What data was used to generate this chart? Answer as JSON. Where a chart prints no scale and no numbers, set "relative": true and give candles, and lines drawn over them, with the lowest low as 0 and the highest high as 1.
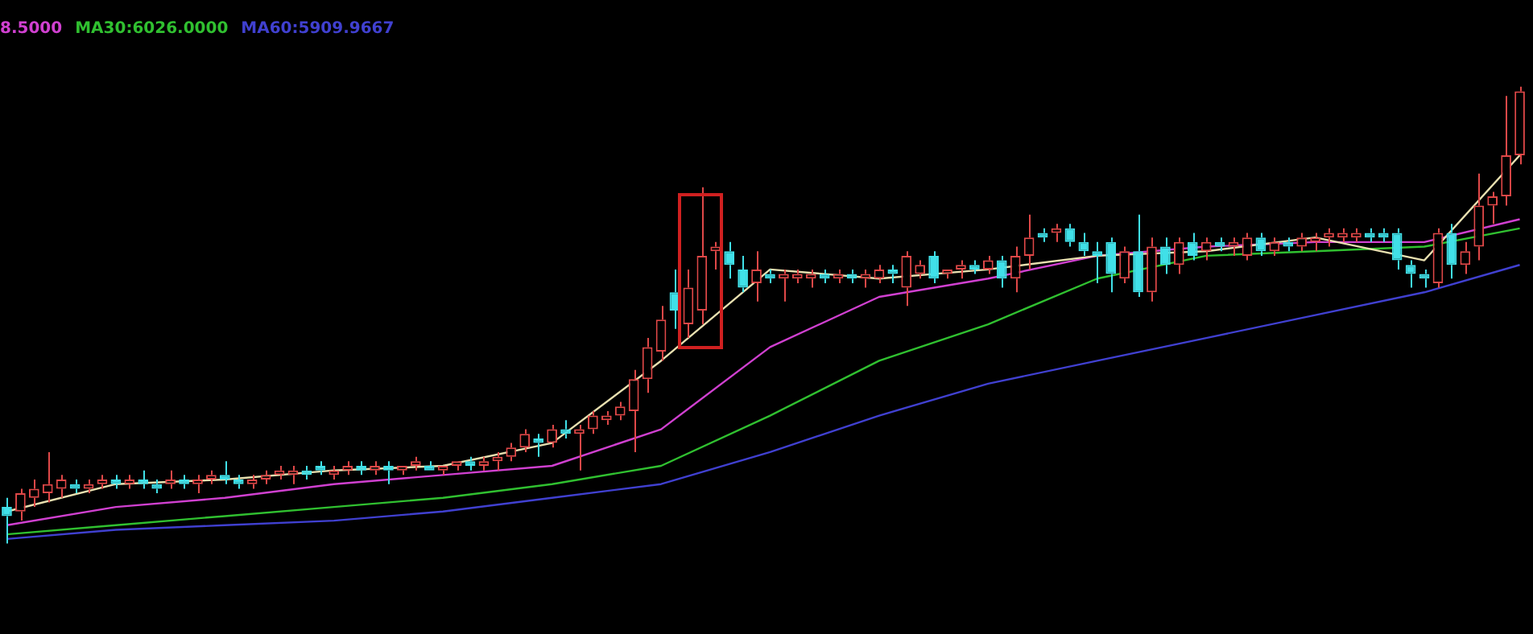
{
  "chart_data": {
    "type": "candlestick",
    "relative": true,
    "legend": "top left",
    "categories": [
      null,
      null,
      null,
      null,
      null,
      null,
      null,
      null,
      null,
      null,
      null,
      null,
      null,
      null,
      null,
      null,
      null,
      null,
      null,
      null,
      null,
      null,
      null,
      null,
      null,
      null,
      null,
      null,
      null,
      null,
      null,
      null,
      null,
      null,
      null,
      null,
      null,
      null,
      null,
      null,
      null,
      null,
      null,
      null,
      null,
      null,
      null,
      null,
      null,
      null,
      null,
      null,
      null,
      null,
      null,
      null,
      null,
      null,
      null,
      null,
      null,
      null,
      null,
      null,
      null,
      null,
      null,
      null,
      null,
      null,
      null,
      null,
      null,
      null,
      null,
      null,
      null,
      null,
      null,
      null,
      null,
      null,
      null,
      null,
      null,
      null,
      null,
      null,
      null,
      null,
      null,
      null,
      null,
      null,
      null,
      null,
      null,
      null,
      null,
      null,
      null,
      null,
      null,
      null,
      null,
      null,
      null,
      null,
      null,
      null,
      null,
      null
    ],
    "ohlc": [
      [
        0.08,
        0.1,
        0,
        0.06
      ],
      [
        0.07,
        0.12,
        0.05,
        0.11
      ],
      [
        0.1,
        0.14,
        0.08,
        0.12
      ],
      [
        0.11,
        0.2,
        0.09,
        0.13
      ],
      [
        0.12,
        0.15,
        0.1,
        0.14
      ],
      [
        0.13,
        0.14,
        0.11,
        0.12
      ],
      [
        0.12,
        0.14,
        0.11,
        0.13
      ],
      [
        0.13,
        0.15,
        0.12,
        0.14
      ],
      [
        0.14,
        0.15,
        0.12,
        0.13
      ],
      [
        0.13,
        0.15,
        0.12,
        0.14
      ],
      [
        0.14,
        0.16,
        0.12,
        0.13
      ],
      [
        0.13,
        0.14,
        0.11,
        0.12
      ],
      [
        0.13,
        0.16,
        0.12,
        0.14
      ],
      [
        0.14,
        0.15,
        0.12,
        0.13
      ],
      [
        0.13,
        0.15,
        0.11,
        0.14
      ],
      [
        0.14,
        0.16,
        0.13,
        0.15
      ],
      [
        0.15,
        0.18,
        0.13,
        0.14
      ],
      [
        0.14,
        0.15,
        0.12,
        0.13
      ],
      [
        0.13,
        0.15,
        0.12,
        0.14
      ],
      [
        0.14,
        0.16,
        0.13,
        0.15
      ],
      [
        0.15,
        0.17,
        0.14,
        0.16
      ],
      [
        0.15,
        0.17,
        0.13,
        0.16
      ],
      [
        0.16,
        0.17,
        0.14,
        0.15
      ],
      [
        0.17,
        0.18,
        0.15,
        0.16
      ],
      [
        0.15,
        0.17,
        0.14,
        0.16
      ],
      [
        0.16,
        0.18,
        0.15,
        0.17
      ],
      [
        0.17,
        0.18,
        0.15,
        0.16
      ],
      [
        0.16,
        0.18,
        0.15,
        0.17
      ],
      [
        0.17,
        0.18,
        0.13,
        0.16
      ],
      [
        0.16,
        0.17,
        0.15,
        0.17
      ],
      [
        0.17,
        0.19,
        0.16,
        0.18
      ],
      [
        0.17,
        0.18,
        0.16,
        0.16
      ],
      [
        0.16,
        0.17,
        0.15,
        0.17
      ],
      [
        0.17,
        0.18,
        0.16,
        0.18
      ],
      [
        0.18,
        0.19,
        0.16,
        0.17
      ],
      [
        0.17,
        0.19,
        0.16,
        0.18
      ],
      [
        0.18,
        0.2,
        0.16,
        0.19
      ],
      [
        0.19,
        0.22,
        0.18,
        0.21
      ],
      [
        0.21,
        0.25,
        0.2,
        0.24
      ],
      [
        0.23,
        0.24,
        0.19,
        0.22
      ],
      [
        0.22,
        0.26,
        0.21,
        0.25
      ],
      [
        0.25,
        0.27,
        0.23,
        0.24
      ],
      [
        0.24,
        0.26,
        0.16,
        0.25
      ],
      [
        0.25,
        0.29,
        0.24,
        0.28
      ],
      [
        0.27,
        0.29,
        0.26,
        0.28
      ],
      [
        0.28,
        0.31,
        0.27,
        0.3
      ],
      [
        0.29,
        0.38,
        0.2,
        0.36
      ],
      [
        0.36,
        0.45,
        0.33,
        0.43
      ],
      [
        0.42,
        0.52,
        0.4,
        0.49
      ],
      [
        0.55,
        0.6,
        0.47,
        0.51
      ],
      [
        0.48,
        0.6,
        0.45,
        0.56
      ],
      [
        0.51,
        0.78,
        0.48,
        0.63
      ],
      [
        0.64,
        0.66,
        0.6,
        0.65
      ],
      [
        0.64,
        0.66,
        0.58,
        0.61
      ],
      [
        0.6,
        0.63,
        0.55,
        0.56
      ],
      [
        0.57,
        0.64,
        0.53,
        0.6
      ],
      [
        0.59,
        0.6,
        0.57,
        0.58
      ],
      [
        0.58,
        0.6,
        0.53,
        0.59
      ],
      [
        0.58,
        0.6,
        0.57,
        0.59
      ],
      [
        0.58,
        0.6,
        0.56,
        0.59
      ],
      [
        0.59,
        0.6,
        0.57,
        0.58
      ],
      [
        0.58,
        0.6,
        0.57,
        0.59
      ],
      [
        0.59,
        0.6,
        0.57,
        0.58
      ],
      [
        0.58,
        0.6,
        0.56,
        0.59
      ],
      [
        0.58,
        0.61,
        0.57,
        0.6
      ],
      [
        0.6,
        0.61,
        0.57,
        0.59
      ],
      [
        0.56,
        0.64,
        0.52,
        0.63
      ],
      [
        0.59,
        0.62,
        0.58,
        0.61
      ],
      [
        0.63,
        0.64,
        0.57,
        0.58
      ],
      [
        0.59,
        0.6,
        0.58,
        0.6
      ],
      [
        0.6,
        0.62,
        0.58,
        0.61
      ],
      [
        0.61,
        0.62,
        0.59,
        0.6
      ],
      [
        0.6,
        0.63,
        0.59,
        0.62
      ],
      [
        0.62,
        0.63,
        0.56,
        0.58
      ],
      [
        0.58,
        0.65,
        0.55,
        0.63
      ],
      [
        0.63,
        0.72,
        0.6,
        0.67
      ],
      [
        0.68,
        0.69,
        0.66,
        0.67
      ],
      [
        0.68,
        0.7,
        0.66,
        0.69
      ],
      [
        0.69,
        0.7,
        0.65,
        0.66
      ],
      [
        0.66,
        0.68,
        0.63,
        0.64
      ],
      [
        0.64,
        0.66,
        0.57,
        0.63
      ],
      [
        0.66,
        0.67,
        0.55,
        0.59
      ],
      [
        0.58,
        0.65,
        0.57,
        0.64
      ],
      [
        0.64,
        0.72,
        0.54,
        0.55
      ],
      [
        0.55,
        0.67,
        0.53,
        0.65
      ],
      [
        0.65,
        0.67,
        0.59,
        0.61
      ],
      [
        0.61,
        0.67,
        0.59,
        0.66
      ],
      [
        0.66,
        0.68,
        0.62,
        0.63
      ],
      [
        0.64,
        0.67,
        0.62,
        0.66
      ],
      [
        0.66,
        0.67,
        0.64,
        0.65
      ],
      [
        0.65,
        0.67,
        0.63,
        0.66
      ],
      [
        0.63,
        0.68,
        0.62,
        0.67
      ],
      [
        0.67,
        0.68,
        0.63,
        0.64
      ],
      [
        0.64,
        0.67,
        0.63,
        0.66
      ],
      [
        0.66,
        0.67,
        0.64,
        0.65
      ],
      [
        0.65,
        0.68,
        0.64,
        0.67
      ],
      [
        0.66,
        0.68,
        0.64,
        0.67
      ],
      [
        0.67,
        0.69,
        0.65,
        0.68
      ],
      [
        0.67,
        0.69,
        0.66,
        0.68
      ],
      [
        0.67,
        0.69,
        0.66,
        0.68
      ],
      [
        0.68,
        0.69,
        0.66,
        0.67
      ],
      [
        0.68,
        0.69,
        0.66,
        0.67
      ],
      [
        0.68,
        0.69,
        0.6,
        0.62
      ],
      [
        0.61,
        0.62,
        0.56,
        0.59
      ],
      [
        0.59,
        0.6,
        0.56,
        0.58
      ],
      [
        0.57,
        0.69,
        0.56,
        0.68
      ],
      [
        0.68,
        0.7,
        0.58,
        0.61
      ],
      [
        0.61,
        0.66,
        0.59,
        0.64
      ],
      [
        0.65,
        0.81,
        0.62,
        0.74
      ],
      [
        0.74,
        0.77,
        0.7,
        0.76
      ],
      [
        0.76,
        0.98,
        0.74,
        0.85
      ],
      [
        0.85,
        1.0,
        0.83,
        0.99
      ]
    ],
    "colors": [
      "#40e0e8",
      "#e04848",
      "#e04848",
      "#e04848",
      "#e04848",
      "#40e0e8",
      "#e04848",
      "#e04848",
      "#40e0e8",
      "#e04848",
      "#40e0e8",
      "#40e0e8",
      "#e04848",
      "#40e0e8",
      "#e04848",
      "#e04848",
      "#40e0e8",
      "#40e0e8",
      "#e04848",
      "#e04848",
      "#e04848",
      "#e04848",
      "#40e0e8",
      "#40e0e8",
      "#e04848",
      "#e04848",
      "#40e0e8",
      "#e04848",
      "#40e0e8",
      "#e04848",
      "#e04848",
      "#40e0e8",
      "#e04848",
      "#e04848",
      "#40e0e8",
      "#e04848",
      "#e04848",
      "#e04848",
      "#e04848",
      "#40e0e8",
      "#e04848",
      "#40e0e8",
      "#e04848",
      "#e04848",
      "#e04848",
      "#e04848",
      "#e04848",
      "#e04848",
      "#e04848",
      "#40e0e8",
      "#e04848",
      "#e04848",
      "#e04848",
      "#40e0e8",
      "#40e0e8",
      "#e04848",
      "#40e0e8",
      "#e04848",
      "#e04848",
      "#e04848",
      "#40e0e8",
      "#e04848",
      "#40e0e8",
      "#e04848",
      "#e04848",
      "#40e0e8",
      "#e04848",
      "#e04848",
      "#40e0e8",
      "#e04848",
      "#e04848",
      "#40e0e8",
      "#e04848",
      "#40e0e8",
      "#e04848",
      "#e04848",
      "#40e0e8",
      "#e04848",
      "#40e0e8",
      "#40e0e8",
      "#40e0e8",
      "#40e0e8",
      "#e04848",
      "#40e0e8",
      "#e04848",
      "#40e0e8",
      "#e04848",
      "#40e0e8",
      "#e04848",
      "#40e0e8",
      "#e04848",
      "#e04848",
      "#40e0e8",
      "#e04848",
      "#40e0e8",
      "#e04848",
      "#e04848",
      "#e04848",
      "#e04848",
      "#e04848",
      "#40e0e8",
      "#40e0e8",
      "#40e0e8",
      "#40e0e8",
      "#40e0e8",
      "#e04848",
      "#40e0e8",
      "#e04848",
      "#e04848",
      "#e04848",
      "#e04848",
      "#e04848"
    ],
    "series": [
      {
        "type": "line",
        "color": "#e8e0b0",
        "values": [
          0.07,
          null,
          null,
          null,
          null,
          null,
          null,
          null,
          0.13,
          null,
          null,
          null,
          null,
          null,
          null,
          null,
          0.14,
          null,
          null,
          null,
          null,
          null,
          null,
          null,
          0.16,
          null,
          null,
          null,
          null,
          null,
          null,
          null,
          0.17,
          null,
          null,
          null,
          null,
          null,
          null,
          null,
          0.22,
          null,
          null,
          null,
          null,
          null,
          null,
          null,
          0.4,
          null,
          null,
          null,
          null,
          null,
          null,
          null,
          0.6,
          null,
          null,
          null,
          null,
          null,
          null,
          null,
          0.58,
          null,
          null,
          null,
          null,
          null,
          null,
          null,
          0.6,
          null,
          null,
          null,
          null,
          null,
          null,
          null,
          0.63,
          null,
          null,
          null,
          null,
          null,
          null,
          null,
          0.64,
          null,
          null,
          null,
          null,
          null,
          null,
          null,
          0.67,
          null,
          null,
          null,
          null,
          null,
          null,
          null,
          0.62,
          null,
          null,
          null,
          null,
          null,
          null,
          0.85
        ]
      },
      {
        "type": "line",
        "name": "8.5000",
        "color": "#d040d0",
        "values": [
          0.04,
          null,
          null,
          null,
          null,
          null,
          null,
          null,
          0.08,
          null,
          null,
          null,
          null,
          null,
          null,
          null,
          0.1,
          null,
          null,
          null,
          null,
          null,
          null,
          null,
          0.13,
          null,
          null,
          null,
          null,
          null,
          null,
          null,
          0.15,
          null,
          null,
          null,
          null,
          null,
          null,
          null,
          0.17,
          null,
          null,
          null,
          null,
          null,
          null,
          null,
          0.25,
          null,
          null,
          null,
          null,
          null,
          null,
          null,
          0.43,
          null,
          null,
          null,
          null,
          null,
          null,
          null,
          0.54,
          null,
          null,
          null,
          null,
          null,
          null,
          null,
          0.58,
          null,
          null,
          null,
          null,
          null,
          null,
          null,
          0.63,
          null,
          null,
          null,
          null,
          null,
          null,
          null,
          0.65,
          null,
          null,
          null,
          null,
          null,
          null,
          null,
          0.66,
          null,
          null,
          null,
          null,
          null,
          null,
          null,
          0.66,
          null,
          null,
          null,
          null,
          null,
          null,
          0.71
        ]
      },
      {
        "type": "line",
        "name": "MA30:6026.0000",
        "color": "#30c030",
        "values": [
          0.02,
          null,
          null,
          null,
          null,
          null,
          null,
          null,
          0.04,
          null,
          null,
          null,
          null,
          null,
          null,
          null,
          0.06,
          null,
          null,
          null,
          null,
          null,
          null,
          null,
          0.08,
          null,
          null,
          null,
          null,
          null,
          null,
          null,
          0.1,
          null,
          null,
          null,
          null,
          null,
          null,
          null,
          0.13,
          null,
          null,
          null,
          null,
          null,
          null,
          null,
          0.17,
          null,
          null,
          null,
          null,
          null,
          null,
          null,
          0.28,
          null,
          null,
          null,
          null,
          null,
          null,
          null,
          0.4,
          null,
          null,
          null,
          null,
          null,
          null,
          null,
          0.48,
          null,
          null,
          null,
          null,
          null,
          null,
          null,
          0.58,
          null,
          null,
          null,
          null,
          null,
          null,
          null,
          0.63,
          null,
          null,
          null,
          null,
          null,
          null,
          null,
          0.64,
          null,
          null,
          null,
          null,
          null,
          null,
          null,
          0.65,
          null,
          null,
          null,
          null,
          null,
          null,
          0.69
        ]
      },
      {
        "type": "line",
        "name": "MA60:5909.9667",
        "color": "#4040d0",
        "values": [
          0.01,
          null,
          null,
          null,
          null,
          null,
          null,
          null,
          0.03,
          null,
          null,
          null,
          null,
          null,
          null,
          null,
          0.04,
          null,
          null,
          null,
          null,
          null,
          null,
          null,
          0.05,
          null,
          null,
          null,
          null,
          null,
          null,
          null,
          0.07,
          null,
          null,
          null,
          null,
          null,
          null,
          null,
          0.1,
          null,
          null,
          null,
          null,
          null,
          null,
          null,
          0.13,
          null,
          null,
          null,
          null,
          null,
          null,
          null,
          0.2,
          null,
          null,
          null,
          null,
          null,
          null,
          null,
          0.28,
          null,
          null,
          null,
          null,
          null,
          null,
          null,
          0.35,
          null,
          null,
          null,
          null,
          null,
          null,
          null,
          0.4,
          null,
          null,
          null,
          null,
          null,
          null,
          null,
          0.45,
          null,
          null,
          null,
          null,
          null,
          null,
          null,
          0.5,
          null,
          null,
          null,
          null,
          null,
          null,
          null,
          0.55,
          null,
          null,
          null,
          null,
          null,
          null,
          0.61
        ]
      }
    ]
  }
}
